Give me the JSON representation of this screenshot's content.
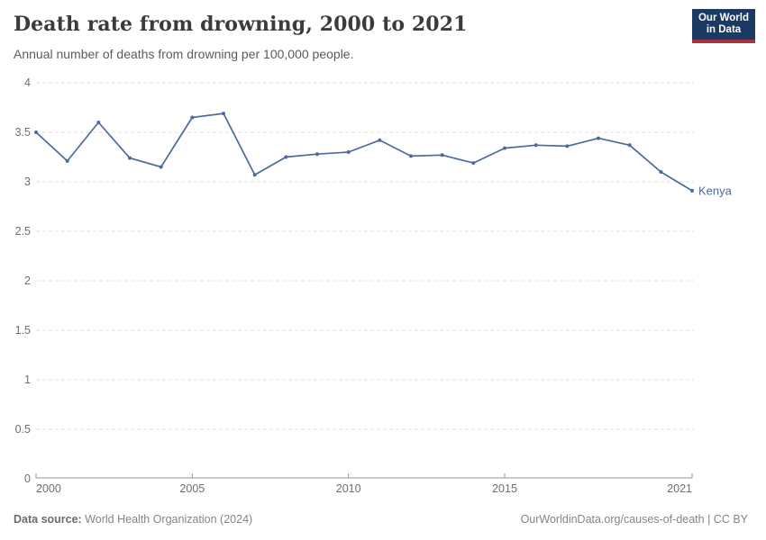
{
  "header": {
    "title": "Death rate from drowning, 2000 to 2021",
    "subtitle": "Annual number of deaths from drowning per 100,000 people.",
    "logo": {
      "line1": "Our World",
      "line2": "in Data"
    }
  },
  "chart_data": {
    "type": "line",
    "title": "Death rate from drowning, 2000 to 2021",
    "xlabel": "",
    "ylabel": "Annual deaths from drowning per 100,000 people",
    "xlim": [
      2000,
      2021
    ],
    "ylim": [
      0,
      4
    ],
    "x_ticks": [
      2000,
      2005,
      2010,
      2015,
      2021
    ],
    "y_ticks": [
      0,
      0.5,
      1,
      1.5,
      2,
      2.5,
      3,
      3.5,
      4
    ],
    "grid": "horizontal-dashed",
    "legend_position": "end-of-line",
    "series": [
      {
        "name": "Kenya",
        "color": "#4c6a9f",
        "x": [
          2000,
          2001,
          2002,
          2003,
          2004,
          2005,
          2006,
          2007,
          2008,
          2009,
          2010,
          2011,
          2012,
          2013,
          2014,
          2015,
          2016,
          2017,
          2018,
          2019,
          2020,
          2021
        ],
        "values": [
          3.5,
          3.21,
          3.6,
          3.24,
          3.15,
          3.65,
          3.69,
          3.07,
          3.25,
          3.28,
          3.3,
          3.42,
          3.26,
          3.27,
          3.19,
          3.34,
          3.37,
          3.36,
          3.44,
          3.37,
          3.1,
          2.91
        ]
      }
    ]
  },
  "footer": {
    "source_label": "Data source:",
    "source_value": " World Health Organization (2024)",
    "credit": "OurWorldinData.org/causes-of-death | CC BY"
  },
  "colors": {
    "line": "#4c6a9f",
    "grid": "#e2e2e2",
    "axis": "#969696",
    "tick_text": "#6e6e6e",
    "logo_navy": "#1a3a63",
    "logo_red": "#a8323f"
  }
}
